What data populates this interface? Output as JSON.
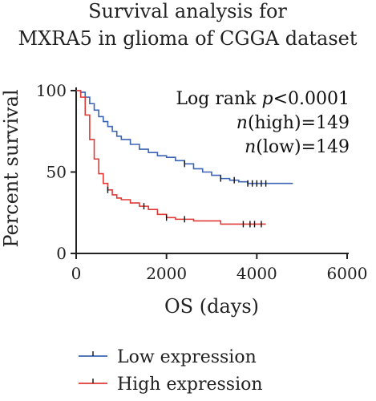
{
  "chart_data": {
    "type": "line",
    "title_line1": "Survival analysis for",
    "title_line2": "MXRA5 in glioma of CGGA dataset",
    "xlabel": "OS (days)",
    "ylabel": "Percent survival",
    "xlim": [
      0,
      6000
    ],
    "ylim": [
      0,
      100
    ],
    "xticks": [
      "0",
      "2000",
      "4000",
      "6000"
    ],
    "yticks": [
      "0",
      "50",
      "100"
    ],
    "annotation": {
      "line1": "Log rank p<0.0001",
      "line2": "n(high)=149",
      "line3": "n(low)=149"
    },
    "series": [
      {
        "name": "Low expression",
        "color": "#3b64b4",
        "x": [
          0,
          100,
          200,
          300,
          400,
          500,
          600,
          700,
          800,
          900,
          1000,
          1200,
          1400,
          1600,
          1800,
          2000,
          2200,
          2400,
          2600,
          2800,
          3000,
          3200,
          3400,
          3600,
          3800,
          4000,
          4200,
          4400,
          4600,
          4800
        ],
        "y": [
          100,
          99,
          96,
          92,
          88,
          84,
          81,
          78,
          75,
          72,
          70,
          67,
          64,
          62,
          60,
          59,
          57,
          55,
          52,
          50,
          48,
          46,
          45,
          44,
          43,
          43,
          43,
          43,
          43,
          43
        ],
        "censors_x": [
          2400,
          3200,
          3500,
          3800,
          3900,
          4000,
          4100,
          4200
        ]
      },
      {
        "name": "High expression",
        "color": "#e03a36",
        "x": [
          0,
          100,
          200,
          300,
          400,
          500,
          600,
          700,
          800,
          900,
          1000,
          1200,
          1400,
          1600,
          1800,
          2000,
          2200,
          2400,
          2600,
          2800,
          3000,
          3200,
          3400,
          3600,
          3800,
          4000,
          4200
        ],
        "y": [
          100,
          96,
          85,
          70,
          58,
          49,
          43,
          39,
          36,
          34,
          33,
          31,
          29,
          27,
          24,
          22,
          21,
          21,
          20,
          20,
          20,
          18,
          18,
          18,
          18,
          18,
          18
        ],
        "censors_x": [
          700,
          1500,
          2000,
          2400,
          3700,
          3850,
          3950,
          4100
        ]
      }
    ],
    "legend_placement": "bottom"
  }
}
